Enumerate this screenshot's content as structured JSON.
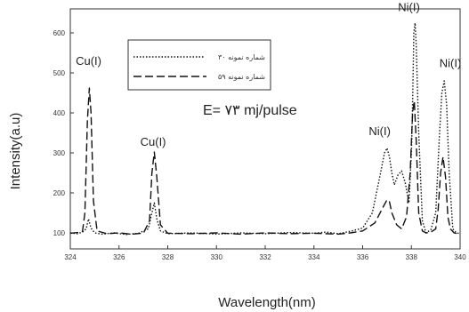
{
  "chart_data": {
    "type": "line",
    "xlabel": "Wavelength(nm)",
    "ylabel": "Intensity(a.u)",
    "xlim": [
      324,
      340
    ],
    "ylim": [
      60,
      660
    ],
    "x_ticks": [
      "324",
      "326",
      "328",
      "330",
      "332",
      "334",
      "336",
      "338",
      "340"
    ],
    "y_ticks": [
      "100",
      "200",
      "300",
      "400",
      "500",
      "600"
    ],
    "annotation_energy": "E= ۷۳ mj/pulse",
    "peak_labels": [
      {
        "text": "Cu(I)",
        "x": 324.75,
        "y": 520
      },
      {
        "text": "Cu(I)",
        "x": 327.4,
        "y": 318
      },
      {
        "text": "Ni(I)",
        "x": 336.7,
        "y": 345
      },
      {
        "text": "Ni(I)",
        "x": 337.9,
        "y": 655
      },
      {
        "text": "Ni(I)",
        "x": 339.6,
        "y": 515
      }
    ],
    "series": [
      {
        "name": "شماره نمونه ۳۰",
        "style": "dotted",
        "color": "#111111",
        "x": [
          324.0,
          324.3,
          324.5,
          324.65,
          324.75,
          324.85,
          325.0,
          325.3,
          325.8,
          326.3,
          326.8,
          327.2,
          327.35,
          327.45,
          327.55,
          327.7,
          328.0,
          329.0,
          330.0,
          331.0,
          332.0,
          333.0,
          334.0,
          334.5,
          335.0,
          335.5,
          336.0,
          336.4,
          336.7,
          336.9,
          337.0,
          337.1,
          337.2,
          337.3,
          337.45,
          337.6,
          337.75,
          337.9,
          338.0,
          338.05,
          338.1,
          338.15,
          338.2,
          338.3,
          338.45,
          338.6,
          338.8,
          339.0,
          339.15,
          339.25,
          339.35,
          339.45,
          339.55,
          339.7,
          339.85,
          340.0
        ],
        "values": [
          100,
          98,
          102,
          110,
          135,
          112,
          100,
          97,
          100,
          96,
          99,
          110,
          150,
          175,
          135,
          105,
          98,
          100,
          97,
          100,
          98,
          101,
          99,
          102,
          98,
          104,
          112,
          150,
          240,
          300,
          312,
          290,
          250,
          220,
          245,
          255,
          225,
          175,
          300,
          420,
          600,
          625,
          570,
          350,
          130,
          100,
          108,
          150,
          340,
          450,
          480,
          420,
          250,
          110,
          100,
          98
        ]
      },
      {
        "name": "شماره نمونه ۵۹",
        "style": "dashed",
        "color": "#111111",
        "x": [
          324.0,
          324.3,
          324.5,
          324.6,
          324.7,
          324.78,
          324.85,
          324.95,
          325.1,
          325.5,
          326.0,
          326.5,
          327.0,
          327.25,
          327.35,
          327.45,
          327.55,
          327.7,
          328.0,
          329.0,
          330.0,
          331.0,
          332.0,
          333.0,
          334.0,
          335.0,
          335.5,
          336.0,
          336.5,
          336.8,
          337.0,
          337.1,
          337.2,
          337.4,
          337.6,
          337.8,
          337.95,
          338.05,
          338.12,
          338.2,
          338.3,
          338.45,
          338.6,
          338.8,
          339.0,
          339.1,
          339.2,
          339.3,
          339.4,
          339.5,
          339.6,
          339.75,
          339.9,
          340.0
        ],
        "values": [
          99,
          101,
          104,
          150,
          380,
          462,
          400,
          180,
          105,
          98,
          100,
          97,
          99,
          130,
          250,
          302,
          240,
          120,
          99,
          98,
          100,
          97,
          100,
          98,
          99,
          97,
          100,
          105,
          125,
          160,
          183,
          178,
          150,
          120,
          110,
          140,
          250,
          400,
          430,
          330,
          150,
          105,
          100,
          102,
          110,
          160,
          250,
          290,
          240,
          140,
          110,
          100,
          98,
          97
        ]
      }
    ]
  }
}
